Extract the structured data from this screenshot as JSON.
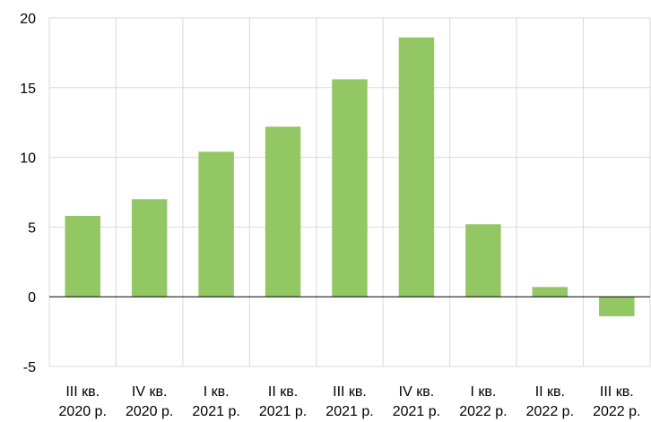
{
  "chart_data": {
    "type": "bar",
    "title": "",
    "xlabel": "",
    "ylabel": "",
    "ylim": [
      -5,
      20
    ],
    "yticks": [
      -5,
      0,
      5,
      10,
      15,
      20
    ],
    "grid": true,
    "categories": [
      [
        "III кв.",
        "2020 р."
      ],
      [
        "IV кв.",
        "2020 р."
      ],
      [
        "I кв.",
        "2021 р."
      ],
      [
        "II кв.",
        "2021 р."
      ],
      [
        "III кв.",
        "2021 р."
      ],
      [
        "IV кв.",
        "2021 р."
      ],
      [
        "I кв.",
        "2022 р."
      ],
      [
        "II кв.",
        "2022 р."
      ],
      [
        "III кв.",
        "2022 р."
      ]
    ],
    "values": [
      5.8,
      7.0,
      10.4,
      12.2,
      15.6,
      18.6,
      5.2,
      0.7,
      -1.4
    ],
    "bar_color": "#92c763",
    "grid_color": "#d9d9d9",
    "axis_color": "#000000"
  }
}
